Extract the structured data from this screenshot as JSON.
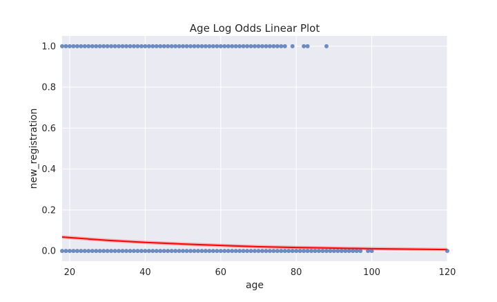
{
  "chart_data": {
    "type": "scatter",
    "title": "Age Log Odds Linear Plot",
    "xlabel": "age",
    "ylabel": "new_registration",
    "xlim": [
      18,
      120
    ],
    "ylim": [
      -0.05,
      1.05
    ],
    "xticks": [
      20,
      40,
      60,
      80,
      100,
      120
    ],
    "yticks": [
      0.0,
      0.2,
      0.4,
      0.6,
      0.8,
      1.0
    ],
    "xtick_labels": [
      "20",
      "40",
      "60",
      "80",
      "100",
      "120"
    ],
    "ytick_labels": [
      "0.0",
      "0.2",
      "0.4",
      "0.6",
      "0.8",
      "1.0"
    ],
    "grid": true,
    "colors": {
      "points": "#4c72b0",
      "fit_line": "#ff0000",
      "background": "#eaeaf2",
      "grid": "#ffffff"
    },
    "series": [
      {
        "type": "scatter",
        "y_value": 1.0,
        "x": [
          18,
          19,
          20,
          21,
          22,
          23,
          24,
          25,
          26,
          27,
          28,
          29,
          30,
          31,
          32,
          33,
          34,
          35,
          36,
          37,
          38,
          39,
          40,
          41,
          42,
          43,
          44,
          45,
          46,
          47,
          48,
          49,
          50,
          51,
          52,
          53,
          54,
          55,
          56,
          57,
          58,
          59,
          60,
          61,
          62,
          63,
          64,
          65,
          66,
          67,
          68,
          69,
          70,
          71,
          72,
          73,
          74,
          75,
          76,
          77,
          79,
          82,
          83,
          88
        ]
      },
      {
        "type": "scatter",
        "y_value": 0.0,
        "x": [
          18,
          19,
          20,
          21,
          22,
          23,
          24,
          25,
          26,
          27,
          28,
          29,
          30,
          31,
          32,
          33,
          34,
          35,
          36,
          37,
          38,
          39,
          40,
          41,
          42,
          43,
          44,
          45,
          46,
          47,
          48,
          49,
          50,
          51,
          52,
          53,
          54,
          55,
          56,
          57,
          58,
          59,
          60,
          61,
          62,
          63,
          64,
          65,
          66,
          67,
          68,
          69,
          70,
          71,
          72,
          73,
          74,
          75,
          76,
          77,
          78,
          79,
          80,
          81,
          82,
          83,
          84,
          85,
          86,
          87,
          88,
          89,
          90,
          91,
          92,
          93,
          94,
          95,
          96,
          97,
          99,
          100,
          120
        ]
      },
      {
        "type": "line",
        "x": [
          18,
          30,
          40,
          50,
          60,
          70,
          80,
          90,
          100,
          110,
          120
        ],
        "y": [
          0.068,
          0.052,
          0.042,
          0.034,
          0.027,
          0.021,
          0.017,
          0.014,
          0.011,
          0.009,
          0.007
        ]
      }
    ]
  }
}
